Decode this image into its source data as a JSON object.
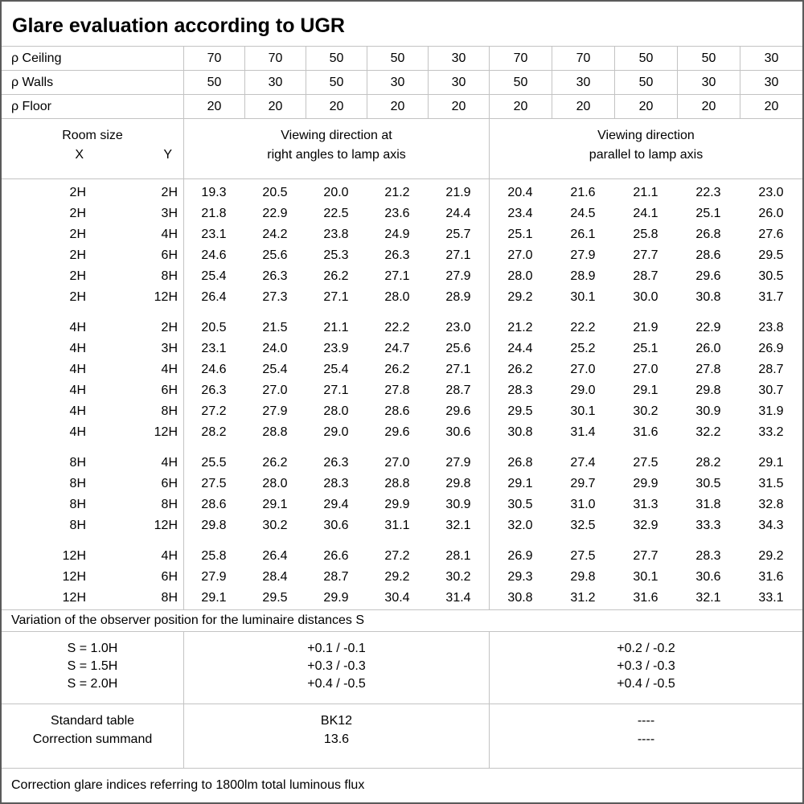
{
  "title": "Glare evaluation according to UGR",
  "reflectance": {
    "rows": [
      {
        "label": "ρ Ceiling",
        "values": [
          "70",
          "70",
          "50",
          "50",
          "30",
          "70",
          "70",
          "50",
          "50",
          "30"
        ]
      },
      {
        "label": "ρ Walls",
        "values": [
          "50",
          "30",
          "50",
          "30",
          "30",
          "50",
          "30",
          "50",
          "30",
          "30"
        ]
      },
      {
        "label": "ρ Floor",
        "values": [
          "20",
          "20",
          "20",
          "20",
          "20",
          "20",
          "20",
          "20",
          "20",
          "20"
        ]
      }
    ]
  },
  "room_header": {
    "room_size": "Room size",
    "x": "X",
    "y": "Y",
    "right_angles_line1": "Viewing direction at",
    "right_angles_line2": "right angles to lamp axis",
    "parallel_line1": "Viewing direction",
    "parallel_line2": "parallel to lamp axis"
  },
  "ugr_groups": [
    {
      "rows": [
        {
          "x": "2H",
          "y": "2H",
          "values": [
            "19.3",
            "20.5",
            "20.0",
            "21.2",
            "21.9",
            "20.4",
            "21.6",
            "21.1",
            "22.3",
            "23.0"
          ]
        },
        {
          "x": "2H",
          "y": "3H",
          "values": [
            "21.8",
            "22.9",
            "22.5",
            "23.6",
            "24.4",
            "23.4",
            "24.5",
            "24.1",
            "25.1",
            "26.0"
          ]
        },
        {
          "x": "2H",
          "y": "4H",
          "values": [
            "23.1",
            "24.2",
            "23.8",
            "24.9",
            "25.7",
            "25.1",
            "26.1",
            "25.8",
            "26.8",
            "27.6"
          ]
        },
        {
          "x": "2H",
          "y": "6H",
          "values": [
            "24.6",
            "25.6",
            "25.3",
            "26.3",
            "27.1",
            "27.0",
            "27.9",
            "27.7",
            "28.6",
            "29.5"
          ]
        },
        {
          "x": "2H",
          "y": "8H",
          "values": [
            "25.4",
            "26.3",
            "26.2",
            "27.1",
            "27.9",
            "28.0",
            "28.9",
            "28.7",
            "29.6",
            "30.5"
          ]
        },
        {
          "x": "2H",
          "y": "12H",
          "values": [
            "26.4",
            "27.3",
            "27.1",
            "28.0",
            "28.9",
            "29.2",
            "30.1",
            "30.0",
            "30.8",
            "31.7"
          ]
        }
      ]
    },
    {
      "rows": [
        {
          "x": "4H",
          "y": "2H",
          "values": [
            "20.5",
            "21.5",
            "21.1",
            "22.2",
            "23.0",
            "21.2",
            "22.2",
            "21.9",
            "22.9",
            "23.8"
          ]
        },
        {
          "x": "4H",
          "y": "3H",
          "values": [
            "23.1",
            "24.0",
            "23.9",
            "24.7",
            "25.6",
            "24.4",
            "25.2",
            "25.1",
            "26.0",
            "26.9"
          ]
        },
        {
          "x": "4H",
          "y": "4H",
          "values": [
            "24.6",
            "25.4",
            "25.4",
            "26.2",
            "27.1",
            "26.2",
            "27.0",
            "27.0",
            "27.8",
            "28.7"
          ]
        },
        {
          "x": "4H",
          "y": "6H",
          "values": [
            "26.3",
            "27.0",
            "27.1",
            "27.8",
            "28.7",
            "28.3",
            "29.0",
            "29.1",
            "29.8",
            "30.7"
          ]
        },
        {
          "x": "4H",
          "y": "8H",
          "values": [
            "27.2",
            "27.9",
            "28.0",
            "28.6",
            "29.6",
            "29.5",
            "30.1",
            "30.2",
            "30.9",
            "31.9"
          ]
        },
        {
          "x": "4H",
          "y": "12H",
          "values": [
            "28.2",
            "28.8",
            "29.0",
            "29.6",
            "30.6",
            "30.8",
            "31.4",
            "31.6",
            "32.2",
            "33.2"
          ]
        }
      ]
    },
    {
      "rows": [
        {
          "x": "8H",
          "y": "4H",
          "values": [
            "25.5",
            "26.2",
            "26.3",
            "27.0",
            "27.9",
            "26.8",
            "27.4",
            "27.5",
            "28.2",
            "29.1"
          ]
        },
        {
          "x": "8H",
          "y": "6H",
          "values": [
            "27.5",
            "28.0",
            "28.3",
            "28.8",
            "29.8",
            "29.1",
            "29.7",
            "29.9",
            "30.5",
            "31.5"
          ]
        },
        {
          "x": "8H",
          "y": "8H",
          "values": [
            "28.6",
            "29.1",
            "29.4",
            "29.9",
            "30.9",
            "30.5",
            "31.0",
            "31.3",
            "31.8",
            "32.8"
          ]
        },
        {
          "x": "8H",
          "y": "12H",
          "values": [
            "29.8",
            "30.2",
            "30.6",
            "31.1",
            "32.1",
            "32.0",
            "32.5",
            "32.9",
            "33.3",
            "34.3"
          ]
        }
      ]
    },
    {
      "rows": [
        {
          "x": "12H",
          "y": "4H",
          "values": [
            "25.8",
            "26.4",
            "26.6",
            "27.2",
            "28.1",
            "26.9",
            "27.5",
            "27.7",
            "28.3",
            "29.2"
          ]
        },
        {
          "x": "12H",
          "y": "6H",
          "values": [
            "27.9",
            "28.4",
            "28.7",
            "29.2",
            "30.2",
            "29.3",
            "29.8",
            "30.1",
            "30.6",
            "31.6"
          ]
        },
        {
          "x": "12H",
          "y": "8H",
          "values": [
            "29.1",
            "29.5",
            "29.9",
            "30.4",
            "31.4",
            "30.8",
            "31.2",
            "31.6",
            "32.1",
            "33.1"
          ]
        }
      ]
    }
  ],
  "variation_note": "Variation of the observer position for the luminaire distances S",
  "spacing_correction": {
    "rows": [
      {
        "label": "S = 1.0H",
        "right_angles": "+0.1 / -0.1",
        "parallel": "+0.2 / -0.2"
      },
      {
        "label": "S = 1.5H",
        "right_angles": "+0.3 / -0.3",
        "parallel": "+0.3 / -0.3"
      },
      {
        "label": "S = 2.0H",
        "right_angles": "+0.4 / -0.5",
        "parallel": "+0.4 / -0.5"
      }
    ]
  },
  "summary": {
    "rows": [
      {
        "label": "Standard table",
        "right_angles": "BK12",
        "parallel": "----"
      },
      {
        "label": "Correction summand",
        "right_angles": "13.6",
        "parallel": "----"
      }
    ]
  },
  "footer_note": "Correction glare indices referring to 1800lm total luminous flux"
}
